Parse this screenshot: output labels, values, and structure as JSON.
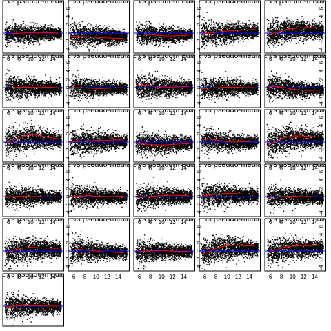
{
  "chart_data": {
    "type": "scatter",
    "layout": "grid of small multiples, 5 columns, 6 rows, 26 panels",
    "panel_title": "gz vs pseudo-median",
    "xlim": [
      5,
      16
    ],
    "ylim": [
      -4.5,
      7
    ],
    "x_ticks": [
      6,
      8,
      10,
      12,
      14
    ],
    "y_ticks": [
      -4,
      -2,
      0,
      2,
      4,
      6
    ],
    "x_tick_labels": [
      "6",
      "8",
      "10",
      "12",
      "14"
    ],
    "y_tick_labels": [
      "-4",
      "-2",
      "0",
      "2",
      "4",
      "6"
    ],
    "grid": false,
    "legend": "none",
    "colors": {
      "points": "#000000",
      "zero_line": "#0000ff",
      "loess_line": "#ff0000"
    },
    "reference_line": {
      "y": 0,
      "color": "#0000ff"
    },
    "loess_x": [
      5.5,
      7,
      8.5,
      10,
      11.5,
      13,
      15
    ],
    "panels": [
      {
        "panel": 1,
        "loess_y": [
          -0.3,
          -0.1,
          0.0,
          0.1,
          0.0,
          0.1,
          0.0
        ],
        "spread": 1.4
      },
      {
        "panel": 2,
        "loess_y": [
          -0.7,
          -0.8,
          -0.9,
          -1.0,
          -1.1,
          -1.2,
          -1.3
        ],
        "spread": 1.5
      },
      {
        "panel": 3,
        "loess_y": [
          -0.2,
          -0.3,
          -0.4,
          -0.6,
          -0.7,
          -0.6,
          -0.5
        ],
        "spread": 1.4
      },
      {
        "panel": 4,
        "loess_y": [
          -0.1,
          0.0,
          0.3,
          0.5,
          0.6,
          0.7,
          0.9
        ],
        "spread": 1.6
      },
      {
        "panel": 5,
        "loess_y": [
          -0.3,
          0.1,
          0.8,
          1.1,
          1.3,
          1.4,
          1.2
        ],
        "spread": 1.7
      },
      {
        "panel": 6,
        "loess_y": [
          -0.1,
          0.0,
          0.1,
          0.1,
          0.0,
          0.1,
          0.0
        ],
        "spread": 1.5
      },
      {
        "panel": 7,
        "loess_y": [
          0.0,
          0.0,
          -0.1,
          -0.2,
          -0.2,
          -0.1,
          0.0
        ],
        "spread": 1.3
      },
      {
        "panel": 8,
        "loess_y": [
          0.5,
          0.6,
          0.4,
          0.2,
          0.1,
          0.2,
          0.3
        ],
        "spread": 1.5
      },
      {
        "panel": 9,
        "loess_y": [
          -0.3,
          -0.1,
          0.0,
          0.1,
          0.1,
          0.0,
          0.0
        ],
        "spread": 1.4
      },
      {
        "panel": 10,
        "loess_y": [
          0.2,
          0.3,
          0.0,
          -0.4,
          -0.6,
          -0.7,
          -0.6
        ],
        "spread": 1.4
      },
      {
        "panel": 11,
        "loess_y": [
          -0.3,
          0.5,
          1.4,
          1.8,
          1.6,
          1.2,
          0.8
        ],
        "spread": 1.8
      },
      {
        "panel": 12,
        "loess_y": [
          0.0,
          0.2,
          0.3,
          0.4,
          0.4,
          0.5,
          0.5
        ],
        "spread": 1.6
      },
      {
        "panel": 13,
        "loess_y": [
          -0.4,
          -0.5,
          -0.6,
          -0.7,
          -0.6,
          -0.5,
          -0.4
        ],
        "spread": 1.5
      },
      {
        "panel": 14,
        "loess_y": [
          0.6,
          0.7,
          0.4,
          0.1,
          0.0,
          0.1,
          0.2
        ],
        "spread": 1.4
      },
      {
        "panel": 15,
        "loess_y": [
          -0.6,
          0.2,
          1.1,
          1.5,
          1.5,
          1.4,
          1.2
        ],
        "spread": 1.8
      },
      {
        "panel": 16,
        "loess_y": [
          0.0,
          0.0,
          0.1,
          0.0,
          0.0,
          -0.1,
          0.0
        ],
        "spread": 1.3
      },
      {
        "panel": 17,
        "loess_y": [
          0.1,
          0.1,
          0.2,
          0.1,
          0.0,
          0.0,
          0.1
        ],
        "spread": 1.4
      },
      {
        "panel": 18,
        "loess_y": [
          -0.3,
          -0.1,
          0.1,
          0.2,
          0.3,
          0.3,
          0.2
        ],
        "spread": 1.5
      },
      {
        "panel": 19,
        "loess_y": [
          0.1,
          0.4,
          0.6,
          0.8,
          0.7,
          0.6,
          0.5
        ],
        "spread": 1.6
      },
      {
        "panel": 20,
        "loess_y": [
          -0.2,
          -0.1,
          0.0,
          0.1,
          0.0,
          0.0,
          -0.1
        ],
        "spread": 1.4
      },
      {
        "panel": 21,
        "loess_y": [
          -0.5,
          0.2,
          0.7,
          0.9,
          0.8,
          0.7,
          0.6
        ],
        "spread": 1.7
      },
      {
        "panel": 22,
        "loess_y": [
          0.2,
          0.4,
          0.2,
          0.0,
          -0.2,
          -0.3,
          -0.4
        ],
        "spread": 1.5
      },
      {
        "panel": 23,
        "loess_y": [
          -0.2,
          0.0,
          0.1,
          0.1,
          0.0,
          -0.1,
          -0.1
        ],
        "spread": 1.4
      },
      {
        "panel": 24,
        "loess_y": [
          -0.8,
          0.1,
          0.9,
          1.3,
          1.4,
          1.3,
          1.2
        ],
        "spread": 1.8
      },
      {
        "panel": 25,
        "loess_y": [
          -0.3,
          0.3,
          0.9,
          1.2,
          1.3,
          1.3,
          1.4
        ],
        "spread": 1.7
      },
      {
        "panel": 26,
        "loess_y": [
          -0.1,
          0.0,
          0.1,
          0.1,
          0.1,
          0.0,
          0.0
        ],
        "spread": 1.5
      }
    ]
  }
}
